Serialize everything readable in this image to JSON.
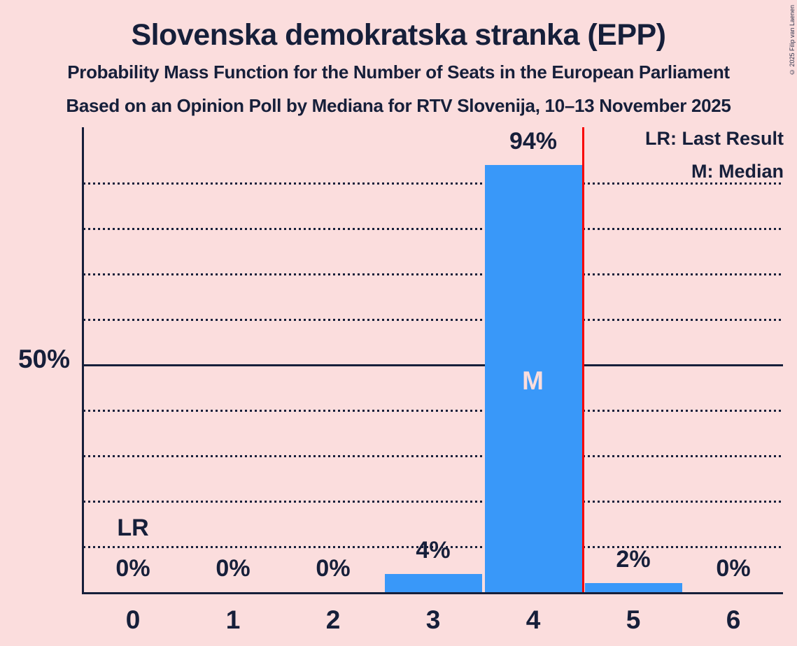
{
  "title": "Slovenska demokratska stranka (EPP)",
  "subtitle1": "Probability Mass Function for the Number of Seats in the European Parliament",
  "subtitle2": "Based on an Opinion Poll by Mediana for RTV Slovenija, 10–13 November 2025",
  "copyright": "© 2025 Filip van Laenen",
  "legend": {
    "lr": "LR: Last Result",
    "m": "M: Median"
  },
  "y_axis": {
    "label": "50%"
  },
  "annotations": {
    "lr": "LR",
    "m": "M"
  },
  "chart_data": {
    "type": "bar",
    "title": "Slovenska demokratska stranka (EPP)",
    "categories": [
      "0",
      "1",
      "2",
      "3",
      "4",
      "5",
      "6"
    ],
    "values": [
      0,
      0,
      0,
      4,
      94,
      2,
      0
    ],
    "value_labels": [
      "0%",
      "0%",
      "0%",
      "4%",
      "94%",
      "2%",
      "0%"
    ],
    "xlabel": "",
    "ylabel": "",
    "ylim": [
      0,
      100
    ],
    "y_gridlines_pct": [
      10,
      20,
      30,
      40,
      50,
      60,
      70,
      80,
      90
    ],
    "y_solid_gridline_pct": 50,
    "y_axis_labeled_pct": 50,
    "median_category": "4",
    "last_result_line_x": 4.5,
    "legend_position": "top-right",
    "grid": "dotted-horizontal",
    "colors": {
      "background": "#FBDDDD",
      "bar": "#3998F9",
      "ink": "#161F3A",
      "last_result_line": "#F80000",
      "median_label": "#FBDDDD"
    }
  }
}
